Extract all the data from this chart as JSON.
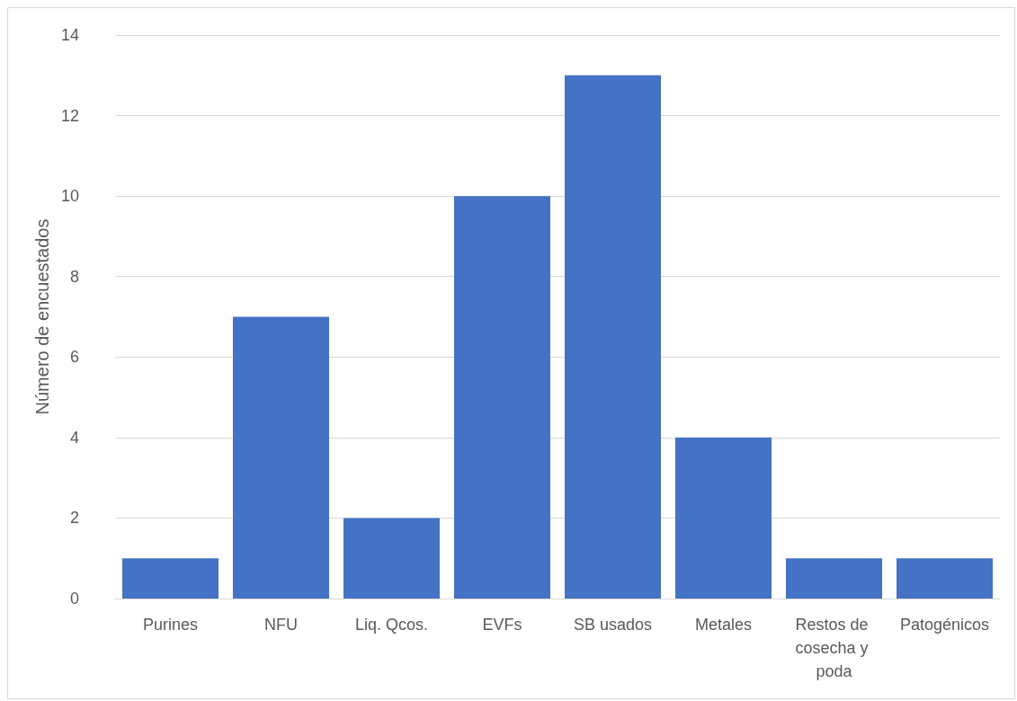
{
  "chart_data": {
    "type": "bar",
    "ylabel": "Número de encuestados",
    "categories": [
      "Purines",
      "NFU",
      "Liq. Qcos.",
      "EVFs",
      "SB usados",
      "Metales",
      "Restos de cosecha y poda",
      "Patogénicos"
    ],
    "values": [
      1,
      7,
      2,
      10,
      13,
      4,
      1,
      1
    ],
    "color": "#4472c4",
    "ylim": [
      0,
      14
    ],
    "yticks": [
      0,
      2,
      4,
      6,
      8,
      10,
      12,
      14
    ],
    "grid": "y"
  }
}
